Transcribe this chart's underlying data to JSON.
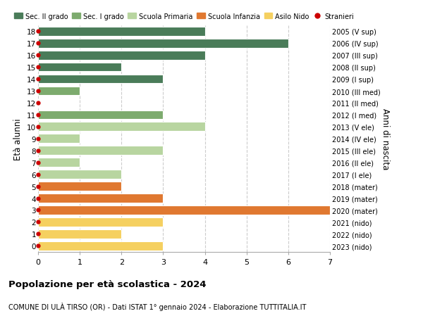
{
  "ages": [
    18,
    17,
    16,
    15,
    14,
    13,
    12,
    11,
    10,
    9,
    8,
    7,
    6,
    5,
    4,
    3,
    2,
    1,
    0
  ],
  "years": [
    "2005 (V sup)",
    "2006 (IV sup)",
    "2007 (III sup)",
    "2008 (II sup)",
    "2009 (I sup)",
    "2010 (III med)",
    "2011 (II med)",
    "2012 (I med)",
    "2013 (V ele)",
    "2014 (IV ele)",
    "2015 (III ele)",
    "2016 (II ele)",
    "2017 (I ele)",
    "2018 (mater)",
    "2019 (mater)",
    "2020 (mater)",
    "2021 (nido)",
    "2022 (nido)",
    "2023 (nido)"
  ],
  "values": [
    4,
    6,
    4,
    2,
    3,
    1,
    0,
    3,
    4,
    1,
    3,
    1,
    2,
    2,
    3,
    7,
    3,
    2,
    3
  ],
  "categories": [
    "Sec. II grado",
    "Sec. II grado",
    "Sec. II grado",
    "Sec. II grado",
    "Sec. II grado",
    "Sec. I grado",
    "Sec. I grado",
    "Sec. I grado",
    "Scuola Primaria",
    "Scuola Primaria",
    "Scuola Primaria",
    "Scuola Primaria",
    "Scuola Primaria",
    "Scuola Infanzia",
    "Scuola Infanzia",
    "Scuola Infanzia",
    "Asilo Nido",
    "Asilo Nido",
    "Asilo Nido"
  ],
  "colors": {
    "Sec. II grado": "#4a7c59",
    "Sec. I grado": "#7dab6e",
    "Scuola Primaria": "#b8d5a0",
    "Scuola Infanzia": "#e07830",
    "Asilo Nido": "#f5d060"
  },
  "stranger_dot_color": "#cc0000",
  "title": "Popolazione per età scolastica - 2024",
  "subtitle": "COMUNE DI ULÀ TIRSO (OR) - Dati ISTAT 1° gennaio 2024 - Elaborazione TUTTITALIA.IT",
  "ylabel": "Età alunni",
  "right_label": "Anni di nascita",
  "xlim": [
    0,
    7
  ],
  "background_color": "#ffffff",
  "legend_labels": [
    "Sec. II grado",
    "Sec. I grado",
    "Scuola Primaria",
    "Scuola Infanzia",
    "Asilo Nido",
    "Stranieri"
  ],
  "legend_colors": [
    "#4a7c59",
    "#7dab6e",
    "#b8d5a0",
    "#e07830",
    "#f5d060",
    "#cc0000"
  ]
}
